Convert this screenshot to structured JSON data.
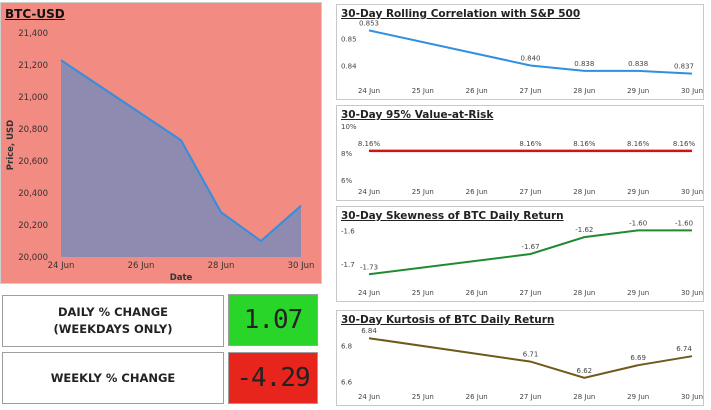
{
  "colors": {
    "main_bg": "#f28b82",
    "area_fill": "#8f8bb0",
    "line_blue": "#2f8fe0",
    "daily_bg": "#2ad52a",
    "weekly_bg": "#e8251c",
    "var_line": "#d01414",
    "skew_line": "#1f8a32",
    "kurt_line": "#6e5a1a"
  },
  "main_chart": {
    "title": "BTC-USD",
    "chart_data": {
      "type": "area",
      "x": [
        "24 Jun",
        "27 Jun",
        "28 Jun",
        "29 Jun",
        "30 Jun"
      ],
      "x_days": [
        24,
        27,
        28,
        29,
        30
      ],
      "y": [
        21230,
        20730,
        20280,
        20100,
        20320
      ],
      "ylim": [
        20000,
        21400
      ],
      "yticks": [
        20000,
        20200,
        20400,
        20600,
        20800,
        21000,
        21200,
        21400
      ],
      "ytick_labels": [
        "20,000",
        "20,200",
        "20,400",
        "20,600",
        "20,800",
        "21,000",
        "21,200",
        "21,400"
      ],
      "xticks": [
        "24 Jun",
        "26 Jun",
        "28 Jun",
        "30 Jun"
      ],
      "xlabel": "Date",
      "ylabel": "Price, USD"
    }
  },
  "kpis": {
    "daily_label": "DAILY % CHANGE\n(WEEKDAYS ONLY)",
    "daily_value": "1.07",
    "weekly_label": "WEEKLY % CHANGE",
    "weekly_value": "-4.29"
  },
  "small_charts": [
    {
      "title": "30-Day Rolling Correlation with S&P 500",
      "chart_data": {
        "type": "line",
        "x": [
          "24 Jun",
          "27 Jun",
          "28 Jun",
          "29 Jun",
          "30 Jun"
        ],
        "y": [
          0.853,
          0.84,
          0.838,
          0.838,
          0.837
        ],
        "data_labels": [
          "0.853",
          "0.840",
          "0.838",
          "0.838",
          "0.837"
        ],
        "ylim": [
          0.835,
          0.855
        ],
        "yticks": [
          0.84,
          0.85
        ],
        "ytick_labels": [
          "0.84",
          "0.85"
        ],
        "xticks": [
          "24 Jun",
          "25 Jun",
          "26 Jun",
          "27 Jun",
          "28 Jun",
          "29 Jun",
          "30 Jun"
        ]
      }
    },
    {
      "title": "30-Day 95% Value-at-Risk",
      "chart_data": {
        "type": "line",
        "x": [
          "24 Jun",
          "27 Jun",
          "28 Jun",
          "29 Jun",
          "30 Jun"
        ],
        "y": [
          8.16,
          8.16,
          8.16,
          8.16,
          8.16
        ],
        "data_labels": [
          "8.16%",
          "8.16%",
          "8.16%",
          "8.16%",
          "8.16%"
        ],
        "ylim": [
          6,
          10
        ],
        "yticks": [
          6,
          8,
          10
        ],
        "ytick_labels": [
          "6%",
          "8%",
          "10%"
        ],
        "xticks": [
          "24 Jun",
          "25 Jun",
          "26 Jun",
          "27 Jun",
          "28 Jun",
          "29 Jun",
          "30 Jun"
        ]
      }
    },
    {
      "title": "30-Day Skewness of BTC Daily Return",
      "chart_data": {
        "type": "line",
        "x": [
          "24 Jun",
          "27 Jun",
          "28 Jun",
          "29 Jun",
          "30 Jun"
        ],
        "y": [
          -1.73,
          -1.67,
          -1.62,
          -1.6,
          -1.6
        ],
        "data_labels": [
          "-1.73",
          "-1.67",
          "-1.62",
          "-1.60",
          "-1.60"
        ],
        "ylim": [
          -1.75,
          -1.59
        ],
        "yticks": [
          -1.7,
          -1.6
        ],
        "ytick_labels": [
          "-1.7",
          "-1.6"
        ],
        "xticks": [
          "24 Jun",
          "25 Jun",
          "26 Jun",
          "27 Jun",
          "28 Jun",
          "29 Jun",
          "30 Jun"
        ]
      }
    },
    {
      "title": "30-Day Kurtosis of BTC Daily Return",
      "chart_data": {
        "type": "line",
        "x": [
          "24 Jun",
          "27 Jun",
          "28 Jun",
          "29 Jun",
          "30 Jun"
        ],
        "y": [
          6.84,
          6.71,
          6.62,
          6.69,
          6.74
        ],
        "data_labels": [
          "6.84",
          "6.71",
          "6.62",
          "6.69",
          "6.74"
        ],
        "ylim": [
          6.58,
          6.88
        ],
        "yticks": [
          6.6,
          6.8
        ],
        "ytick_labels": [
          "6.6",
          "6.8"
        ],
        "xticks": [
          "24 Jun",
          "25 Jun",
          "26 Jun",
          "27 Jun",
          "28 Jun",
          "29 Jun",
          "30 Jun"
        ]
      }
    }
  ]
}
